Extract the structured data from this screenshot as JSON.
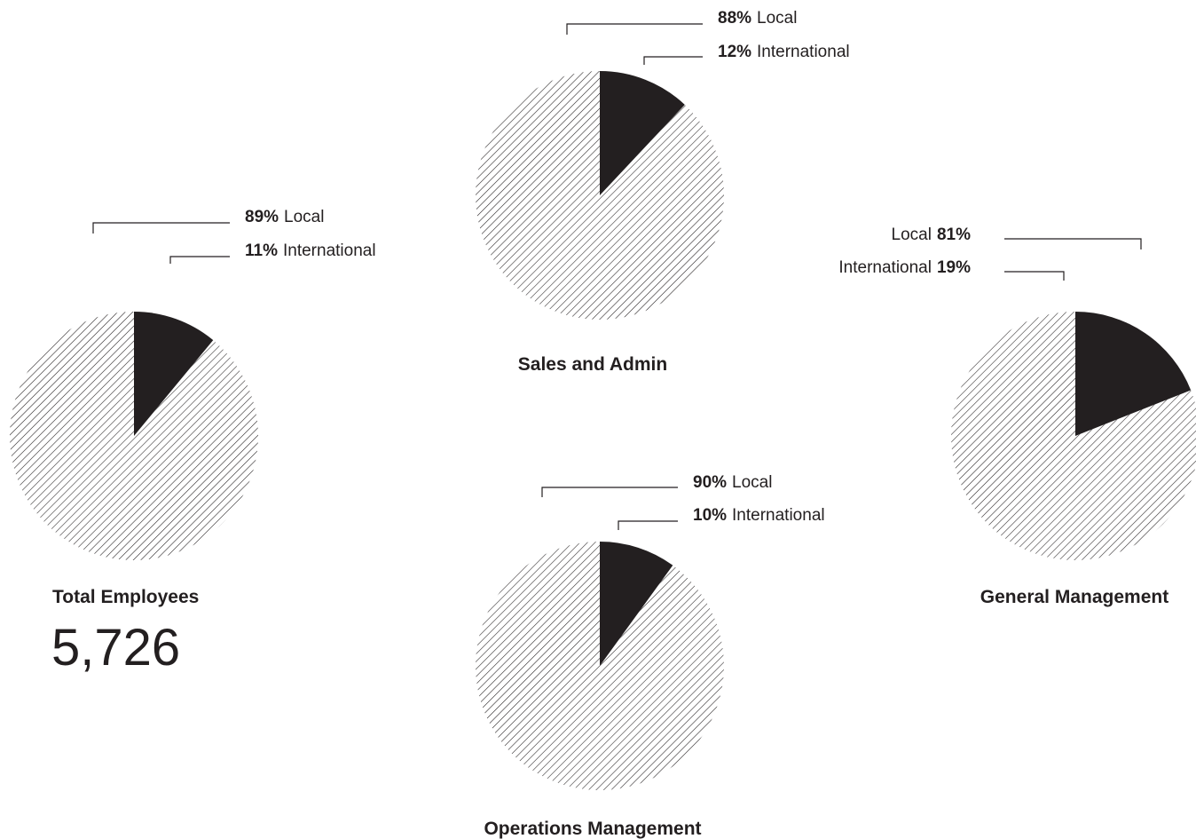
{
  "chart_data": [
    {
      "type": "pie",
      "title": "Total Employees",
      "total": "5,726",
      "slices": [
        {
          "name": "Local",
          "value": 89,
          "percent_label": "89%",
          "fill": "hatched"
        },
        {
          "name": "International",
          "value": 11,
          "percent_label": "11%",
          "fill": "solid"
        }
      ]
    },
    {
      "type": "pie",
      "title": "Sales and Admin",
      "slices": [
        {
          "name": "Local",
          "value": 88,
          "percent_label": "88%",
          "fill": "hatched"
        },
        {
          "name": "International",
          "value": 12,
          "percent_label": "12%",
          "fill": "solid"
        }
      ]
    },
    {
      "type": "pie",
      "title": "Operations Management",
      "slices": [
        {
          "name": "Local",
          "value": 90,
          "percent_label": "90%",
          "fill": "hatched"
        },
        {
          "name": "International",
          "value": 10,
          "percent_label": "10%",
          "fill": "solid"
        }
      ]
    },
    {
      "type": "pie",
      "title": "General Management",
      "slices": [
        {
          "name": "Local",
          "value": 81,
          "percent_label": "81%",
          "fill": "hatched"
        },
        {
          "name": "International",
          "value": 19,
          "percent_label": "19%",
          "fill": "solid"
        }
      ]
    }
  ],
  "colors": {
    "ink": "#231f20",
    "background": "#ffffff"
  }
}
